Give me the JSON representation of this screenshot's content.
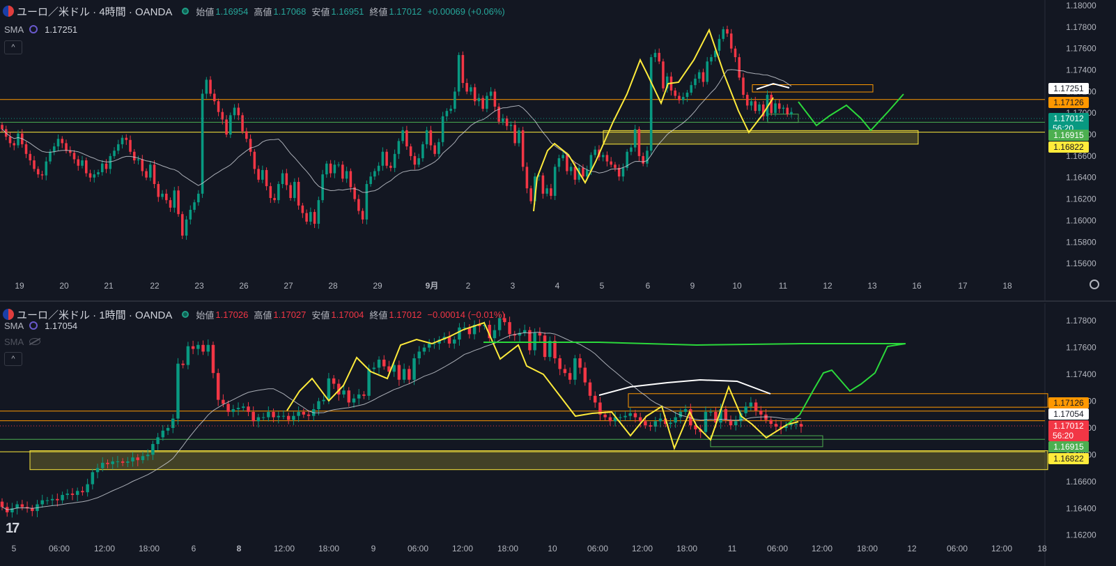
{
  "charts": [
    {
      "symbol": "ユーロ／米ドル · 4時間 · OANDA",
      "ohlc": {
        "open_label": "始値",
        "open": "1.16954",
        "high_label": "高値",
        "high": "1.17068",
        "low_label": "安値",
        "low": "1.16951",
        "close_label": "終値",
        "close": "1.17012",
        "change": "+0.00069 (+0.06%)",
        "direction": "up"
      },
      "indicators": [
        {
          "name": "SMA",
          "value": "1.17251",
          "visible": true
        }
      ],
      "collapse_icon": "chevron-up-icon"
    },
    {
      "symbol": "ユーロ／米ドル · 1時間 · OANDA",
      "ohlc": {
        "open_label": "始値",
        "open": "1.17026",
        "high_label": "高値",
        "high": "1.17027",
        "low_label": "安値",
        "low": "1.17004",
        "close_label": "終値",
        "close": "1.17012",
        "change": "−0.00014 (−0.01%)",
        "direction": "down"
      },
      "indicators": [
        {
          "name": "SMA",
          "value": "1.17054",
          "visible": true
        },
        {
          "name": "SMA",
          "value": "",
          "visible": false
        }
      ],
      "collapse_icon": "chevron-up-icon"
    }
  ],
  "chart_data": [
    {
      "type": "candlestick",
      "title": "ユーロ／米ドル · 4時間 · OANDA",
      "x_ticks": [
        "19",
        "20",
        "21",
        "22",
        "23",
        "26",
        "27",
        "28",
        "29",
        "9月",
        "2",
        "3",
        "4",
        "5",
        "6",
        "9",
        "10",
        "11",
        "12",
        "13",
        "16",
        "17",
        "18"
      ],
      "y_ticks": [
        "1.18000",
        "1.17800",
        "1.17600",
        "1.17400",
        "1.17200",
        "1.17000",
        "1.16800",
        "1.16600",
        "1.16400",
        "1.16200",
        "1.16000",
        "1.15800",
        "1.15600"
      ],
      "ylim": [
        1.1551,
        1.18
      ],
      "series": [
        {
          "name": "EUR/USD",
          "close": [
            1.1685,
            1.1678,
            1.1672,
            1.167,
            1.1681,
            1.1671,
            1.1662,
            1.1656,
            1.1648,
            1.1643,
            1.1642,
            1.1655,
            1.1664,
            1.1669,
            1.1676,
            1.1672,
            1.1665,
            1.1663,
            1.1657,
            1.1651,
            1.1656,
            1.1644,
            1.164,
            1.1643,
            1.1645,
            1.1653,
            1.1648,
            1.166,
            1.1665,
            1.1671,
            1.1677,
            1.1675,
            1.1664,
            1.1656,
            1.1657,
            1.1646,
            1.164,
            1.1652,
            1.1634,
            1.1622,
            1.1625,
            1.1619,
            1.1612,
            1.1628,
            1.1606,
            1.1586,
            1.1601,
            1.161,
            1.1617,
            1.1625,
            1.1718,
            1.1731,
            1.1718,
            1.1711,
            1.1701,
            1.1694,
            1.168,
            1.1698,
            1.1705,
            1.1698,
            1.1683,
            1.1676,
            1.1664,
            1.1648,
            1.1638,
            1.1647,
            1.1632,
            1.1621,
            1.1619,
            1.1634,
            1.1644,
            1.1633,
            1.1621,
            1.1636,
            1.1614,
            1.1607,
            1.1599,
            1.1608,
            1.1597,
            1.1619,
            1.1643,
            1.1653,
            1.1644,
            1.1652,
            1.1652,
            1.1639,
            1.1646,
            1.1631,
            1.162,
            1.1609,
            1.1601,
            1.1634,
            1.1641,
            1.1646,
            1.1651,
            1.1664,
            1.1651,
            1.1649,
            1.1662,
            1.1674,
            1.1684,
            1.1669,
            1.166,
            1.1652,
            1.1658,
            1.1671,
            1.1684,
            1.167,
            1.1662,
            1.1673,
            1.1697,
            1.1702,
            1.1704,
            1.172,
            1.1754,
            1.1728,
            1.172,
            1.1724,
            1.1711,
            1.1714,
            1.1704,
            1.1716,
            1.172,
            1.1706,
            1.1692,
            1.1695,
            1.1688,
            1.1689,
            1.1672,
            1.1684,
            1.165,
            1.163,
            1.1618,
            1.1641,
            1.1642,
            1.1625,
            1.163,
            1.1623,
            1.165,
            1.1658,
            1.1661,
            1.1646,
            1.165,
            1.1638,
            1.1649,
            1.1641,
            1.1647,
            1.1661,
            1.1666,
            1.1659,
            1.1661,
            1.1655,
            1.1652,
            1.1649,
            1.1641,
            1.1649,
            1.1664,
            1.1668,
            1.1685,
            1.166,
            1.1653,
            1.1665,
            1.1752,
            1.1756,
            1.1748,
            1.1723,
            1.1734,
            1.1721,
            1.1716,
            1.1712,
            1.1715,
            1.1719,
            1.1726,
            1.1732,
            1.1738,
            1.1729,
            1.1748,
            1.1752,
            1.1758,
            1.1769,
            1.1778,
            1.1774,
            1.176,
            1.1752,
            1.1733,
            1.1717,
            1.1707,
            1.1711,
            1.1702,
            1.1708,
            1.1697,
            1.1717,
            1.17,
            1.1709,
            1.1704,
            1.1705,
            1.1699,
            1.1701
          ]
        },
        {
          "name": "SMA",
          "close_ref": true
        }
      ],
      "price_labels": [
        {
          "label": "1.17251",
          "kind": "sma"
        },
        {
          "label": "1.17126",
          "kind": "level_orange"
        },
        {
          "label": "1.17012",
          "sub": "56:20",
          "kind": "last_up"
        },
        {
          "label": "1.16915",
          "kind": "level_green"
        },
        {
          "label": "1.16822",
          "kind": "level_yellow"
        }
      ],
      "horizontal_lines": [
        1.17126,
        1.16915,
        1.16822
      ]
    },
    {
      "type": "candlestick",
      "title": "ユーロ／米ドル · 1時間 · OANDA",
      "x_ticks": [
        "5",
        "06:00",
        "12:00",
        "18:00",
        "6",
        "8",
        "12:00",
        "18:00",
        "9",
        "06:00",
        "12:00",
        "18:00",
        "10",
        "06:00",
        "12:00",
        "18:00",
        "11",
        "06:00",
        "12:00",
        "18:00",
        "12",
        "06:00",
        "12:00",
        "18"
      ],
      "y_ticks": [
        "1.17800",
        "1.17600",
        "1.17400",
        "1.17200",
        "1.17000",
        "1.16800",
        "1.16600",
        "1.16400",
        "1.16200"
      ],
      "ylim": [
        1.1611,
        1.179
      ],
      "series": [
        {
          "name": "EUR/USD",
          "close": [
            1.1641,
            1.1637,
            1.164,
            1.1643,
            1.1641,
            1.164,
            1.1638,
            1.1643,
            1.1646,
            1.1646,
            1.1647,
            1.1646,
            1.165,
            1.1651,
            1.165,
            1.1653,
            1.1652,
            1.1658,
            1.1667,
            1.167,
            1.1674,
            1.1673,
            1.1675,
            1.1675,
            1.1674,
            1.1675,
            1.1678,
            1.1676,
            1.1679,
            1.168,
            1.1688,
            1.1693,
            1.1698,
            1.17,
            1.1707,
            1.1748,
            1.1747,
            1.1761,
            1.1759,
            1.1762,
            1.1757,
            1.1762,
            1.1741,
            1.1721,
            1.1718,
            1.1712,
            1.1714,
            1.1715,
            1.1716,
            1.1712,
            1.1705,
            1.1708,
            1.1708,
            1.1712,
            1.1708,
            1.1709,
            1.1709,
            1.1706,
            1.1709,
            1.1712,
            1.171,
            1.1709,
            1.1714,
            1.172,
            1.1721,
            1.1737,
            1.1733,
            1.1725,
            1.1728,
            1.1719,
            1.1722,
            1.1725,
            1.1724,
            1.1744,
            1.1745,
            1.1751,
            1.1746,
            1.1742,
            1.1747,
            1.1736,
            1.1744,
            1.1736,
            1.1752,
            1.1757,
            1.176,
            1.1763,
            1.1763,
            1.1766,
            1.1768,
            1.1763,
            1.1766,
            1.1775,
            1.1775,
            1.177,
            1.1777,
            1.1776,
            1.1777,
            1.1767,
            1.1773,
            1.1782,
            1.1779,
            1.177,
            1.1769,
            1.1771,
            1.1773,
            1.1758,
            1.1771,
            1.1769,
            1.1753,
            1.1765,
            1.1752,
            1.1744,
            1.1741,
            1.1736,
            1.1752,
            1.1745,
            1.1734,
            1.1724,
            1.1719,
            1.171,
            1.1708,
            1.1705,
            1.1708,
            1.1708,
            1.1709,
            1.1711,
            1.1708,
            1.1705,
            1.1702,
            1.1701,
            1.1705,
            1.1707,
            1.1703,
            1.1704,
            1.1708,
            1.1712,
            1.1714,
            1.1702,
            1.1699,
            1.1697,
            1.1712,
            1.1712,
            1.1704,
            1.1714,
            1.1706,
            1.1702,
            1.1705,
            1.1711,
            1.1716,
            1.1719,
            1.1713,
            1.171,
            1.1706,
            1.1703,
            1.1701,
            1.17,
            1.1702,
            1.1703,
            1.1703,
            1.1701
          ]
        },
        {
          "name": "SMA",
          "close_ref": true
        }
      ],
      "price_labels": [
        {
          "label": "1.17126",
          "kind": "level_orange"
        },
        {
          "label": "1.17054",
          "kind": "sma"
        },
        {
          "label": "1.17012",
          "sub": "56:20",
          "kind": "last_down"
        },
        {
          "label": "1.16915",
          "kind": "level_green"
        },
        {
          "label": "1.16822",
          "kind": "level_yellow"
        }
      ],
      "horizontal_lines": [
        1.17126,
        1.17054,
        1.16915,
        1.16822
      ]
    }
  ],
  "branding": {
    "logo_text": "17",
    "settings_icon": "gear-icon"
  },
  "colors": {
    "bg": "#131722",
    "up": "#089981",
    "down": "#f23645",
    "grid": "#1e222d",
    "text": "#b2b5be",
    "yellow": "#ffeb3b",
    "orange": "#ff9800",
    "green": "#4caf50",
    "sma": "#d1d4dc",
    "drawing_green": "#2bd93b",
    "drawing_white": "#ffffff"
  }
}
